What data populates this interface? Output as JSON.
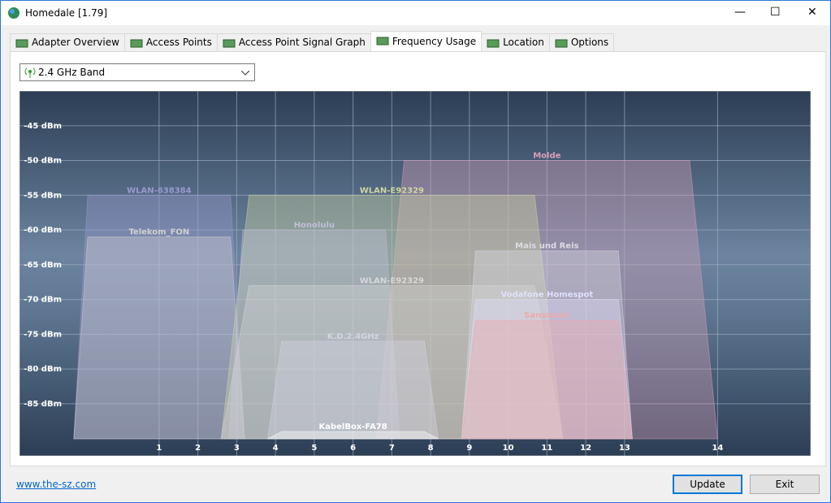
{
  "window": {
    "title": "Homedale [1.79]"
  },
  "tabs": [
    {
      "label": "Adapter Overview",
      "active": false
    },
    {
      "label": "Access Points",
      "active": false
    },
    {
      "label": "Access Point Signal Graph",
      "active": false
    },
    {
      "label": "Frequency Usage",
      "active": true
    },
    {
      "label": "Location",
      "active": false
    },
    {
      "label": "Options",
      "active": false
    }
  ],
  "band_select": {
    "value": "2.4 GHz Band"
  },
  "chart_data": {
    "type": "spectrum",
    "xlim": [
      2394,
      2496
    ],
    "xticks": [
      {
        "value": 2412,
        "label": "1"
      },
      {
        "value": 2417,
        "label": "2"
      },
      {
        "value": 2422,
        "label": "3"
      },
      {
        "value": 2427,
        "label": "4"
      },
      {
        "value": 2432,
        "label": "5"
      },
      {
        "value": 2437,
        "label": "6"
      },
      {
        "value": 2442,
        "label": "7"
      },
      {
        "value": 2447,
        "label": "8"
      },
      {
        "value": 2452,
        "label": "9"
      },
      {
        "value": 2457,
        "label": "10"
      },
      {
        "value": 2462,
        "label": "11"
      },
      {
        "value": 2467,
        "label": "12"
      },
      {
        "value": 2472,
        "label": "13"
      },
      {
        "value": 2484,
        "label": "14"
      }
    ],
    "ylim": [
      -92.5,
      -40
    ],
    "yticks": [
      {
        "value": -45,
        "label": "-45 dBm"
      },
      {
        "value": -50,
        "label": "-50 dBm"
      },
      {
        "value": -55,
        "label": "-55 dBm"
      },
      {
        "value": -60,
        "label": "-60 dBm"
      },
      {
        "value": -65,
        "label": "-65 dBm"
      },
      {
        "value": -70,
        "label": "-70 dBm"
      },
      {
        "value": -75,
        "label": "-75 dBm"
      },
      {
        "value": -80,
        "label": "-80 dBm"
      },
      {
        "value": -85,
        "label": "-85 dBm"
      }
    ],
    "grid": true,
    "series": [
      {
        "name": "WLAN-638384",
        "color": "#9a9ad0",
        "x": 2412,
        "width": 20,
        "value": -55
      },
      {
        "name": "Molde",
        "color": "#d8a0b8",
        "x": 2462,
        "width": 40,
        "value": -50
      },
      {
        "name": "WLAN-E92329",
        "color": "#d0d8a0",
        "x": 2442,
        "width": 40,
        "value": -55
      },
      {
        "name": "Telekom_FON",
        "color": "#d0d0d0",
        "x": 2412,
        "width": 20,
        "value": -61
      },
      {
        "name": "Honolulu",
        "color": "#c0c0d8",
        "x": 2432,
        "width": 20,
        "value": -60
      },
      {
        "name": "Mais und Reis",
        "color": "#dcdce4",
        "x": 2462,
        "width": 20,
        "value": -63
      },
      {
        "name": "WLAN-E92329",
        "color": "#d8d8d8",
        "x": 2442,
        "width": 40,
        "value": -68
      },
      {
        "name": "Vodafone Homespot",
        "color": "#e0e0ff",
        "x": 2462,
        "width": 20,
        "value": -70
      },
      {
        "name": "Sanssouci",
        "color": "#f0a8a8",
        "x": 2462,
        "width": 20,
        "value": -73
      },
      {
        "name": "K.D.2.4GHz",
        "color": "#d4d4e4",
        "x": 2437,
        "width": 20,
        "value": -76
      },
      {
        "name": "KabelBox-FA78",
        "color": "#ffffff",
        "x": 2437,
        "width": 20,
        "value": -89
      }
    ]
  },
  "footer": {
    "link": "www.the-sz.com",
    "buttons": [
      "Update",
      "Exit"
    ]
  }
}
